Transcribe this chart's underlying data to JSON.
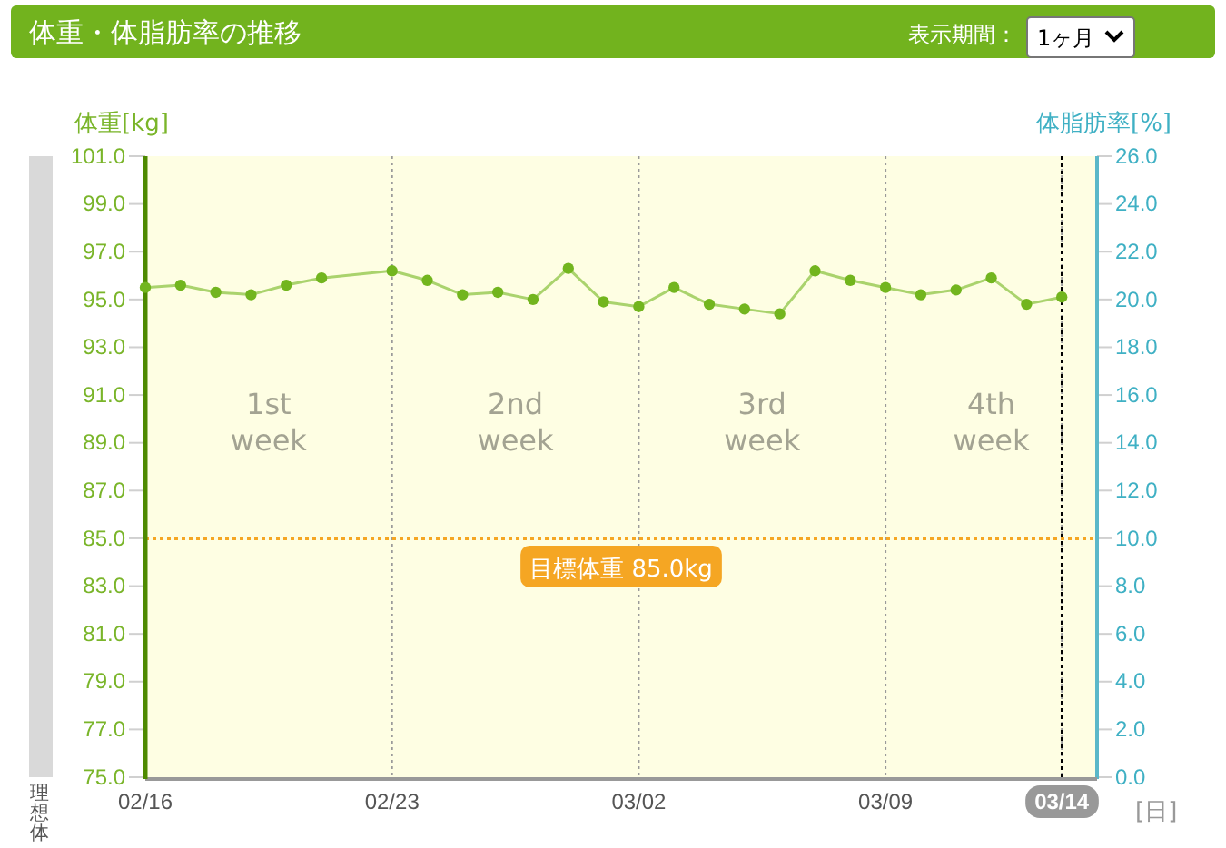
{
  "chart_data": {
    "type": "line",
    "title": "体重・体脂肪率の推移",
    "ylabel": "体重[kg]",
    "y2label": "体脂肪率[%]",
    "xlabel": "[日]",
    "x": [
      "--02-16",
      "--02-17",
      "--02-18",
      "--02-19",
      "--02-20",
      "--02-21",
      "--02-23",
      "--02-24",
      "--02-25",
      "--02-26",
      "--02-27",
      "--02-28",
      "--03-01",
      "--03-02",
      "--03-03",
      "--03-04",
      "--03-05",
      "--03-06",
      "--03-07",
      "--03-08",
      "--03-09",
      "--03-10",
      "--03-11",
      "--03-12",
      "--03-13",
      "--03-14"
    ],
    "series": [
      {
        "color": "#72b51e",
        "values": [
          95.5,
          95.6,
          95.3,
          95.2,
          95.6,
          95.9,
          96.2,
          95.8,
          95.2,
          95.3,
          95.0,
          96.3,
          94.9,
          94.7,
          95.5,
          94.8,
          94.6,
          94.4,
          96.2,
          95.8,
          95.5,
          95.2,
          95.4,
          95.9,
          94.8,
          95.1
        ]
      }
    ],
    "marker": "circle",
    "line_style": "solid",
    "grid": "x",
    "xlim": [
      "--02-16",
      "--03-15"
    ],
    "xticks": [
      {
        "value": "--02-16",
        "label": "02/16"
      },
      {
        "value": "--02-23",
        "label": "02/23"
      },
      {
        "value": "--03-02",
        "label": "03/02"
      },
      {
        "value": "--03-09",
        "label": "03/09"
      },
      {
        "value": "--03-14",
        "label": "03/14"
      }
    ],
    "ylim": [
      75,
      101
    ],
    "yticks": [
      {
        "value": 75,
        "label": "75.0"
      },
      {
        "value": 77,
        "label": "77.0"
      },
      {
        "value": 79,
        "label": "79.0"
      },
      {
        "value": 81,
        "label": "81.0"
      },
      {
        "value": 83,
        "label": "83.0"
      },
      {
        "value": 85,
        "label": "85.0"
      },
      {
        "value": 87,
        "label": "87.0"
      },
      {
        "value": 89,
        "label": "89.0"
      },
      {
        "value": 91,
        "label": "91.0"
      },
      {
        "value": 93,
        "label": "93.0"
      },
      {
        "value": 95,
        "label": "95.0"
      },
      {
        "value": 97,
        "label": "97.0"
      },
      {
        "value": 99,
        "label": "99.0"
      },
      {
        "value": 101,
        "label": "101.0"
      }
    ],
    "y2lim": [
      0,
      26
    ],
    "y2ticks": [
      {
        "value": 0,
        "label": "0.0"
      },
      {
        "value": 2,
        "label": "2.0"
      },
      {
        "value": 4,
        "label": "4.0"
      },
      {
        "value": 6,
        "label": "6.0"
      },
      {
        "value": 8,
        "label": "8.0"
      },
      {
        "value": 10,
        "label": "10.0"
      },
      {
        "value": 12,
        "label": "12.0"
      },
      {
        "value": 14,
        "label": "14.0"
      },
      {
        "value": 16,
        "label": "16.0"
      },
      {
        "value": 18,
        "label": "18.0"
      },
      {
        "value": 20,
        "label": "20.0"
      },
      {
        "value": 22,
        "label": "22.0"
      },
      {
        "value": 24,
        "label": "24.0"
      },
      {
        "value": 26,
        "label": "26.0"
      }
    ],
    "ref_lines": [
      {
        "axis": "y",
        "value": 85,
        "label": "目標体重 85.0kg",
        "color": "#f5a623",
        "line_style": "dotted"
      },
      {
        "axis": "x",
        "value": "--03-14",
        "color": "#000000",
        "line_style": "dotted"
      }
    ],
    "annotations": [
      "表示期間：",
      "1ヶ月",
      "理想体",
      "1st week",
      "2nd week",
      "3rd week",
      "4th week"
    ]
  }
}
